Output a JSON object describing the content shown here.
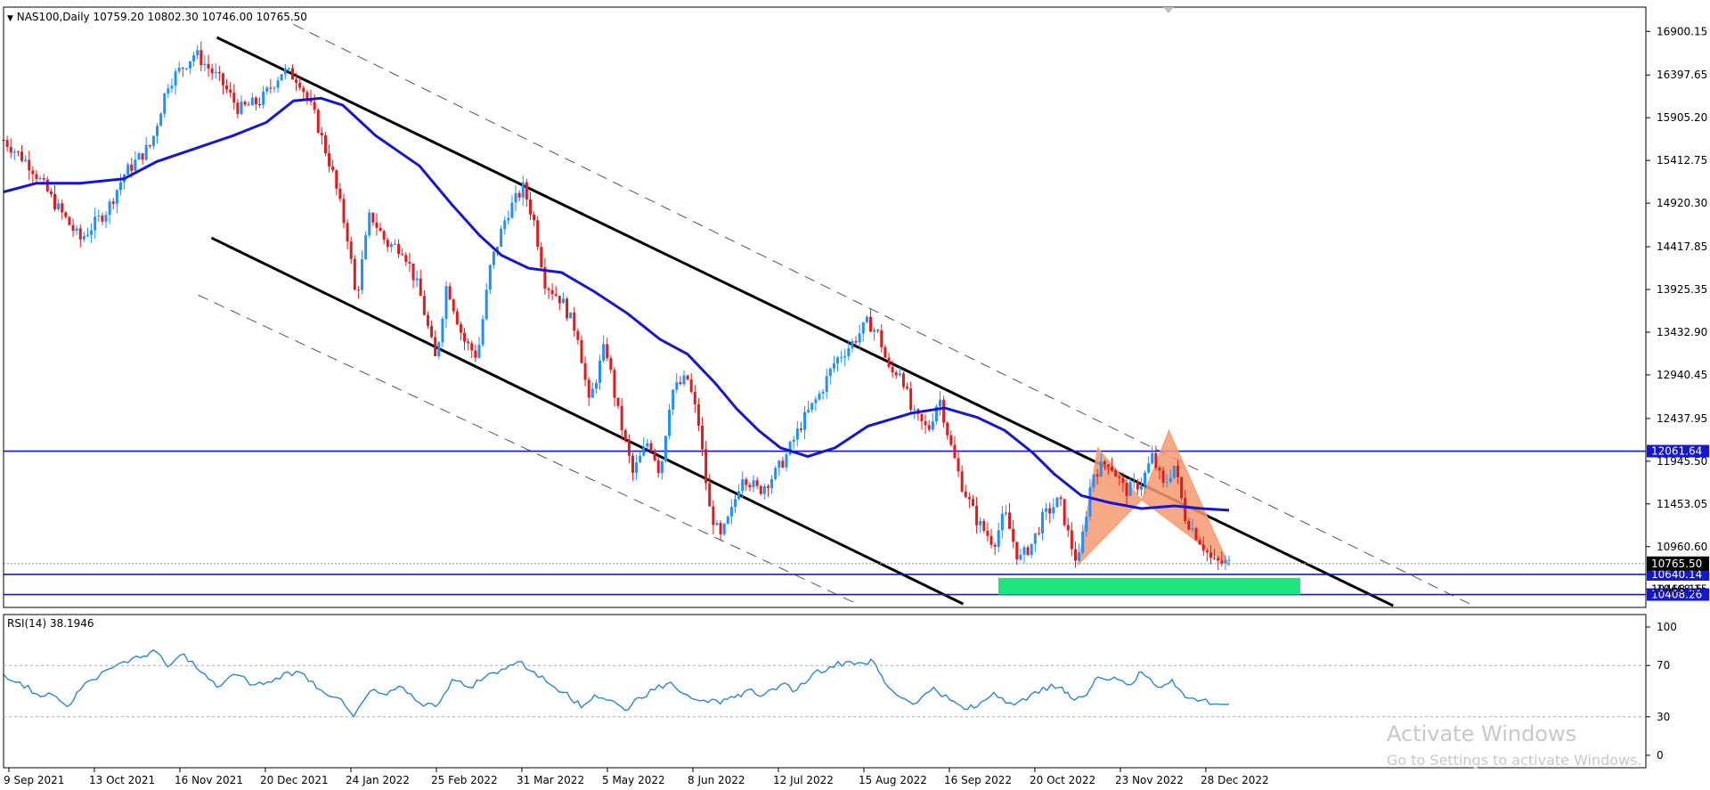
{
  "header": {
    "symbol_line": "NAS100,Daily  10759.20 10802.30 10746.00 10765.50",
    "rsi_line": "RSI(14) 38.1946"
  },
  "watermark": {
    "title": "Activate Windows",
    "subtitle": "Go to Settings to activate Windows."
  },
  "colors": {
    "bull": "#1e90ff",
    "bear": "#e31a1c",
    "ma": "#1515d6",
    "rsi": "#2a86d8",
    "pattern": "#f59a6f",
    "zone": "#1ee67e",
    "hline": "#1515d6"
  },
  "chart_data": [
    {
      "type": "candlestick",
      "symbol": "NAS100",
      "timeframe": "Daily",
      "ohlc_last": {
        "open": 10759.2,
        "high": 10802.3,
        "low": 10746.0,
        "close": 10765.5
      },
      "ylim": [
        10260,
        17180
      ],
      "y_ticks": [
        "16900.15",
        "16397.65",
        "15905.20",
        "15412.75",
        "14920.30",
        "14417.85",
        "13925.35",
        "13432.90",
        "12940.45",
        "12437.95",
        "11945.50",
        "11453.05",
        "10960.60",
        "10468.15"
      ],
      "x_ticks": [
        "9 Sep 2021",
        "13 Oct 2021",
        "16 Nov 2021",
        "20 Dec 2021",
        "24 Jan 2022",
        "25 Feb 2022",
        "31 Mar 2022",
        "5 May 2022",
        "8 Jun 2022",
        "12 Jul 2022",
        "15 Aug 2022",
        "16 Sep 2022",
        "20 Oct 2022",
        "23 Nov 2022",
        "28 Dec 2022"
      ],
      "price_series": [
        [
          0,
          15650
        ],
        [
          25,
          15350
        ],
        [
          45,
          14950
        ],
        [
          70,
          14500
        ],
        [
          95,
          14850
        ],
        [
          110,
          15250
        ],
        [
          135,
          15600
        ],
        [
          150,
          16300
        ],
        [
          175,
          16650
        ],
        [
          200,
          16300
        ],
        [
          215,
          16000
        ],
        [
          235,
          16100
        ],
        [
          255,
          16450
        ],
        [
          270,
          16350
        ],
        [
          285,
          15900
        ],
        [
          300,
          15300
        ],
        [
          315,
          14500
        ],
        [
          322,
          13800
        ],
        [
          335,
          14800
        ],
        [
          350,
          14450
        ],
        [
          365,
          14400
        ],
        [
          380,
          13900
        ],
        [
          395,
          13100
        ],
        [
          405,
          14000
        ],
        [
          420,
          13350
        ],
        [
          433,
          13150
        ],
        [
          445,
          14200
        ],
        [
          460,
          14800
        ],
        [
          475,
          15100
        ],
        [
          485,
          14700
        ],
        [
          495,
          14000
        ],
        [
          510,
          13800
        ],
        [
          525,
          13400
        ],
        [
          535,
          12600
        ],
        [
          550,
          13300
        ],
        [
          560,
          12600
        ],
        [
          575,
          11800
        ],
        [
          590,
          12200
        ],
        [
          600,
          11800
        ],
        [
          610,
          12750
        ],
        [
          625,
          12900
        ],
        [
          635,
          12400
        ],
        [
          645,
          11400
        ],
        [
          655,
          11050
        ],
        [
          665,
          11350
        ],
        [
          675,
          11800
        ],
        [
          690,
          11600
        ],
        [
          705,
          11800
        ],
        [
          715,
          12000
        ],
        [
          730,
          12400
        ],
        [
          745,
          12700
        ],
        [
          760,
          13100
        ],
        [
          775,
          13300
        ],
        [
          790,
          13550
        ],
        [
          800,
          13400
        ],
        [
          810,
          12950
        ],
        [
          820,
          13000
        ],
        [
          830,
          12500
        ],
        [
          845,
          12300
        ],
        [
          855,
          12700
        ],
        [
          865,
          12150
        ],
        [
          875,
          11700
        ],
        [
          890,
          11250
        ],
        [
          905,
          11000
        ],
        [
          915,
          11350
        ],
        [
          928,
          10800
        ],
        [
          940,
          11000
        ],
        [
          950,
          11300
        ],
        [
          965,
          11500
        ],
        [
          975,
          11000
        ],
        [
          982,
          10750
        ],
        [
          995,
          11800
        ],
        [
          1010,
          11950
        ],
        [
          1025,
          11600
        ],
        [
          1040,
          11700
        ],
        [
          1050,
          12000
        ],
        [
          1060,
          11650
        ],
        [
          1070,
          11900
        ],
        [
          1080,
          11300
        ],
        [
          1095,
          11000
        ],
        [
          1105,
          10780
        ],
        [
          1120,
          10765
        ]
      ],
      "ma_series": [
        [
          0,
          15050
        ],
        [
          30,
          15150
        ],
        [
          70,
          15150
        ],
        [
          110,
          15200
        ],
        [
          140,
          15400
        ],
        [
          175,
          15550
        ],
        [
          210,
          15700
        ],
        [
          240,
          15850
        ],
        [
          265,
          16100
        ],
        [
          290,
          16130
        ],
        [
          310,
          16050
        ],
        [
          340,
          15700
        ],
        [
          380,
          15350
        ],
        [
          410,
          14900
        ],
        [
          435,
          14550
        ],
        [
          455,
          14320
        ],
        [
          480,
          14170
        ],
        [
          510,
          14120
        ],
        [
          540,
          13900
        ],
        [
          570,
          13650
        ],
        [
          600,
          13350
        ],
        [
          625,
          13180
        ],
        [
          650,
          12850
        ],
        [
          670,
          12550
        ],
        [
          690,
          12300
        ],
        [
          710,
          12100
        ],
        [
          735,
          12000
        ],
        [
          760,
          12100
        ],
        [
          790,
          12350
        ],
        [
          830,
          12500
        ],
        [
          860,
          12560
        ],
        [
          890,
          12450
        ],
        [
          915,
          12300
        ],
        [
          940,
          12050
        ],
        [
          960,
          11800
        ],
        [
          985,
          11550
        ],
        [
          1010,
          11470
        ],
        [
          1040,
          11400
        ],
        [
          1070,
          11430
        ],
        [
          1095,
          11400
        ],
        [
          1120,
          11380
        ]
      ],
      "ma_label": "",
      "horizontal_levels": [
        {
          "value": 12061.64,
          "label": "12061.64"
        },
        {
          "value": 10640.14,
          "label": "10640.14"
        },
        {
          "value": 10408.26,
          "label": "10408.26"
        }
      ],
      "current_price_label": "10765.50",
      "partial_label": "10468.15",
      "support_zone": {
        "x_start": "20 Sep 2022",
        "x_end": "26 Dec 2022",
        "y_low": 10408.26,
        "y_high": 10600
      },
      "channel_lines": [
        {
          "style": "solid",
          "from": [
            195,
            16830
          ],
          "to": [
            1270,
            10280
          ]
        },
        {
          "style": "solid",
          "from": [
            190,
            14520
          ],
          "to": [
            877,
            10300
          ]
        },
        {
          "style": "dashed",
          "from": [
            265,
            16980
          ],
          "to": [
            1340,
            10300
          ]
        },
        {
          "style": "dashed",
          "from": [
            178,
            13860
          ],
          "to": [
            780,
            10300
          ]
        }
      ],
      "pattern_triangles": [
        [
          [
            982,
            10750
          ],
          [
            1000,
            12100
          ],
          [
            1040,
            11500
          ]
        ],
        [
          [
            1040,
            11500
          ],
          [
            1065,
            12300
          ],
          [
            1120,
            10740
          ]
        ]
      ]
    },
    {
      "type": "line",
      "indicator": "RSI",
      "period": 14,
      "last_value": 38.1946,
      "ylim": [
        0,
        100
      ],
      "levels": [
        70,
        30
      ],
      "y_ticks": [
        "100",
        "70",
        "30",
        "0"
      ],
      "values": [
        [
          0,
          63
        ],
        [
          15,
          57
        ],
        [
          30,
          48
        ],
        [
          45,
          47
        ],
        [
          58,
          38
        ],
        [
          70,
          51
        ],
        [
          90,
          65
        ],
        [
          110,
          73
        ],
        [
          125,
          76
        ],
        [
          137,
          82
        ],
        [
          150,
          69
        ],
        [
          165,
          79
        ],
        [
          180,
          65
        ],
        [
          195,
          53
        ],
        [
          210,
          63
        ],
        [
          230,
          55
        ],
        [
          245,
          57
        ],
        [
          260,
          65
        ],
        [
          275,
          63
        ],
        [
          290,
          51
        ],
        [
          305,
          45
        ],
        [
          320,
          30
        ],
        [
          335,
          50
        ],
        [
          350,
          47
        ],
        [
          365,
          53
        ],
        [
          380,
          41
        ],
        [
          395,
          38
        ],
        [
          410,
          59
        ],
        [
          425,
          53
        ],
        [
          440,
          61
        ],
        [
          455,
          67
        ],
        [
          470,
          73
        ],
        [
          485,
          65
        ],
        [
          500,
          55
        ],
        [
          515,
          49
        ],
        [
          528,
          37
        ],
        [
          540,
          47
        ],
        [
          555,
          43
        ],
        [
          568,
          35
        ],
        [
          580,
          45
        ],
        [
          595,
          51
        ],
        [
          610,
          57
        ],
        [
          625,
          47
        ],
        [
          640,
          43
        ],
        [
          655,
          40
        ],
        [
          668,
          45
        ],
        [
          680,
          51
        ],
        [
          695,
          47
        ],
        [
          710,
          55
        ],
        [
          725,
          51
        ],
        [
          740,
          64
        ],
        [
          755,
          69
        ],
        [
          770,
          73
        ],
        [
          785,
          72
        ],
        [
          795,
          73
        ],
        [
          805,
          57
        ],
        [
          820,
          45
        ],
        [
          835,
          41
        ],
        [
          850,
          53
        ],
        [
          865,
          43
        ],
        [
          878,
          36
        ],
        [
          890,
          38
        ],
        [
          905,
          49
        ],
        [
          920,
          41
        ],
        [
          935,
          43
        ],
        [
          950,
          53
        ],
        [
          965,
          53
        ],
        [
          975,
          45
        ],
        [
          990,
          47
        ],
        [
          1000,
          61
        ],
        [
          1015,
          61
        ],
        [
          1030,
          55
        ],
        [
          1040,
          65
        ],
        [
          1055,
          53
        ],
        [
          1068,
          59
        ],
        [
          1080,
          45
        ],
        [
          1095,
          43
        ],
        [
          1110,
          40
        ],
        [
          1120,
          40
        ]
      ]
    }
  ]
}
